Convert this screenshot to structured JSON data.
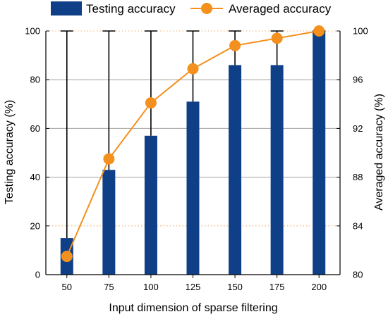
{
  "chart_data": {
    "type": "bar",
    "xlabel": "Input dimension of sparse filtering",
    "ylabel": "Testing accuracy (%)",
    "ylabel_right": "Averaged accuracy (%)",
    "categories": [
      "50",
      "75",
      "100",
      "125",
      "150",
      "175",
      "200"
    ],
    "ylim": [
      0,
      100
    ],
    "ylim_right": [
      80,
      100
    ],
    "yticks": [
      "0",
      "20",
      "40",
      "60",
      "80",
      "100"
    ],
    "yticks_right": [
      "80",
      "84",
      "88",
      "92",
      "96",
      "100"
    ],
    "grid": "horizontal dotted orange, solid gray at 40/60/80",
    "legend_position": "top",
    "series": [
      {
        "name": "Testing accuracy",
        "kind": "bar",
        "axis": "left",
        "color": "#0f3f86",
        "values": [
          15,
          43,
          57,
          71,
          86,
          86,
          100
        ],
        "whisker_high": [
          100,
          100,
          100,
          100,
          100,
          100,
          100
        ]
      },
      {
        "name": "Averaged accuracy",
        "kind": "line",
        "axis": "right",
        "color": "#f4901e",
        "values": [
          81.5,
          89.5,
          94.1,
          96.9,
          98.8,
          99.4,
          100
        ]
      }
    ]
  }
}
